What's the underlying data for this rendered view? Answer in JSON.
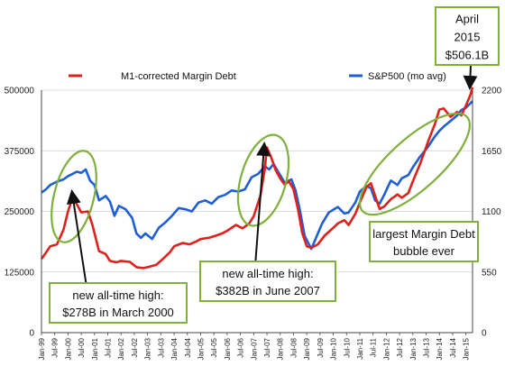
{
  "chart_data": {
    "type": "line",
    "legend": {
      "margin_debt": "M1-corrected Margin Debt",
      "sp500": "S&P500 (mo avg)"
    },
    "colors": {
      "margin_debt": "#e0201b",
      "sp500": "#1f5fd6",
      "oval": "#7fb03c"
    },
    "y_left": {
      "ticks": [
        "0",
        "125000",
        "250000",
        "375000",
        "500000"
      ],
      "range": [
        0,
        500000
      ]
    },
    "y_right": {
      "ticks": [
        "0",
        "550",
        "1100",
        "1650",
        "2200"
      ],
      "range": [
        0,
        2200
      ]
    },
    "x_ticks": [
      "Jan-99",
      "Jul-99",
      "Jan-00",
      "Jul-00",
      "Jan-01",
      "Jul-01",
      "Jan-02",
      "Jul-02",
      "Jan-03",
      "Jul-03",
      "Jan-04",
      "Jul-04",
      "Jan-05",
      "Jul-05",
      "Jan-06",
      "Jul-06",
      "Jan-07",
      "Jul-07",
      "Jan-08",
      "Jul-08",
      "Jan-09",
      "Jul-09",
      "Jan-10",
      "Jul-10",
      "Jan-11",
      "Jul-11",
      "Jan-12",
      "Jul-12",
      "Jan-13",
      "Jul-13",
      "Jan-14",
      "Jul-14",
      "Jan-15"
    ],
    "x_range_years": [
      1999.0,
      2015.25
    ],
    "series": [
      {
        "name": "M1-corrected Margin Debt",
        "axis": "left",
        "points": [
          [
            1999.0,
            152000
          ],
          [
            1999.17,
            165000
          ],
          [
            1999.33,
            178000
          ],
          [
            1999.58,
            182000
          ],
          [
            1999.83,
            212000
          ],
          [
            2000.0,
            250000
          ],
          [
            2000.17,
            278000
          ],
          [
            2000.33,
            265000
          ],
          [
            2000.5,
            248000
          ],
          [
            2000.75,
            250000
          ],
          [
            2000.92,
            222000
          ],
          [
            2001.17,
            168000
          ],
          [
            2001.42,
            162000
          ],
          [
            2001.58,
            148000
          ],
          [
            2001.83,
            145000
          ],
          [
            2002.0,
            148000
          ],
          [
            2002.33,
            146000
          ],
          [
            2002.58,
            135000
          ],
          [
            2002.83,
            133000
          ],
          [
            2003.0,
            135000
          ],
          [
            2003.33,
            140000
          ],
          [
            2003.58,
            152000
          ],
          [
            2003.83,
            165000
          ],
          [
            2004.0,
            178000
          ],
          [
            2004.33,
            185000
          ],
          [
            2004.58,
            182000
          ],
          [
            2004.83,
            188000
          ],
          [
            2005.0,
            193000
          ],
          [
            2005.33,
            196000
          ],
          [
            2005.58,
            200000
          ],
          [
            2005.83,
            205000
          ],
          [
            2006.0,
            210000
          ],
          [
            2006.33,
            222000
          ],
          [
            2006.58,
            215000
          ],
          [
            2006.83,
            225000
          ],
          [
            2007.0,
            240000
          ],
          [
            2007.25,
            282000
          ],
          [
            2007.42,
            338000
          ],
          [
            2007.5,
            382000
          ],
          [
            2007.67,
            360000
          ],
          [
            2007.83,
            335000
          ],
          [
            2008.0,
            318000
          ],
          [
            2008.17,
            305000
          ],
          [
            2008.33,
            312000
          ],
          [
            2008.5,
            296000
          ],
          [
            2008.67,
            255000
          ],
          [
            2008.83,
            205000
          ],
          [
            2009.0,
            178000
          ],
          [
            2009.17,
            175000
          ],
          [
            2009.42,
            182000
          ],
          [
            2009.67,
            200000
          ],
          [
            2009.92,
            212000
          ],
          [
            2010.17,
            225000
          ],
          [
            2010.42,
            232000
          ],
          [
            2010.58,
            222000
          ],
          [
            2010.83,
            245000
          ],
          [
            2011.0,
            268000
          ],
          [
            2011.25,
            300000
          ],
          [
            2011.42,
            308000
          ],
          [
            2011.58,
            282000
          ],
          [
            2011.75,
            255000
          ],
          [
            2011.92,
            260000
          ],
          [
            2012.17,
            275000
          ],
          [
            2012.42,
            285000
          ],
          [
            2012.58,
            278000
          ],
          [
            2012.83,
            288000
          ],
          [
            2013.0,
            312000
          ],
          [
            2013.25,
            345000
          ],
          [
            2013.42,
            370000
          ],
          [
            2013.58,
            395000
          ],
          [
            2013.83,
            430000
          ],
          [
            2014.0,
            460000
          ],
          [
            2014.17,
            462000
          ],
          [
            2014.42,
            445000
          ],
          [
            2014.67,
            455000
          ],
          [
            2014.83,
            448000
          ],
          [
            2015.0,
            468000
          ],
          [
            2015.17,
            490000
          ],
          [
            2015.25,
            506100
          ]
        ]
      },
      {
        "name": "S&P500 (mo avg)",
        "axis": "right",
        "points": [
          [
            1999.0,
            1270
          ],
          [
            1999.17,
            1300
          ],
          [
            1999.33,
            1340
          ],
          [
            1999.58,
            1370
          ],
          [
            1999.83,
            1390
          ],
          [
            2000.0,
            1420
          ],
          [
            2000.17,
            1440
          ],
          [
            2000.33,
            1460
          ],
          [
            2000.5,
            1450
          ],
          [
            2000.67,
            1480
          ],
          [
            2000.83,
            1380
          ],
          [
            2001.0,
            1340
          ],
          [
            2001.17,
            1200
          ],
          [
            2001.42,
            1240
          ],
          [
            2001.58,
            1190
          ],
          [
            2001.75,
            1060
          ],
          [
            2001.92,
            1150
          ],
          [
            2002.17,
            1120
          ],
          [
            2002.42,
            1040
          ],
          [
            2002.58,
            900
          ],
          [
            2002.75,
            860
          ],
          [
            2002.92,
            900
          ],
          [
            2003.17,
            850
          ],
          [
            2003.42,
            950
          ],
          [
            2003.67,
            1000
          ],
          [
            2003.92,
            1060
          ],
          [
            2004.17,
            1130
          ],
          [
            2004.42,
            1120
          ],
          [
            2004.67,
            1100
          ],
          [
            2004.92,
            1180
          ],
          [
            2005.17,
            1200
          ],
          [
            2005.42,
            1170
          ],
          [
            2005.67,
            1230
          ],
          [
            2005.92,
            1250
          ],
          [
            2006.17,
            1290
          ],
          [
            2006.42,
            1280
          ],
          [
            2006.67,
            1300
          ],
          [
            2006.92,
            1410
          ],
          [
            2007.17,
            1440
          ],
          [
            2007.42,
            1510
          ],
          [
            2007.58,
            1480
          ],
          [
            2007.75,
            1530
          ],
          [
            2007.92,
            1460
          ],
          [
            2008.17,
            1360
          ],
          [
            2008.42,
            1390
          ],
          [
            2008.58,
            1290
          ],
          [
            2008.75,
            1100
          ],
          [
            2008.92,
            880
          ],
          [
            2009.17,
            760
          ],
          [
            2009.33,
            850
          ],
          [
            2009.58,
            990
          ],
          [
            2009.83,
            1090
          ],
          [
            2010.17,
            1140
          ],
          [
            2010.42,
            1080
          ],
          [
            2010.58,
            1090
          ],
          [
            2010.83,
            1180
          ],
          [
            2011.0,
            1280
          ],
          [
            2011.25,
            1330
          ],
          [
            2011.42,
            1310
          ],
          [
            2011.58,
            1200
          ],
          [
            2011.75,
            1170
          ],
          [
            2011.92,
            1250
          ],
          [
            2012.17,
            1380
          ],
          [
            2012.42,
            1340
          ],
          [
            2012.58,
            1400
          ],
          [
            2012.83,
            1430
          ],
          [
            2013.0,
            1500
          ],
          [
            2013.25,
            1590
          ],
          [
            2013.42,
            1640
          ],
          [
            2013.58,
            1690
          ],
          [
            2013.83,
            1780
          ],
          [
            2014.0,
            1830
          ],
          [
            2014.17,
            1870
          ],
          [
            2014.42,
            1920
          ],
          [
            2014.67,
            1970
          ],
          [
            2014.83,
            2020
          ],
          [
            2015.0,
            2040
          ],
          [
            2015.17,
            2080
          ],
          [
            2015.25,
            2100
          ]
        ]
      }
    ],
    "annotations": [
      {
        "id": "march2000",
        "lines": [
          "new all-time high:",
          "$278B in March 2000"
        ]
      },
      {
        "id": "june2007",
        "lines": [
          "new all-time high:",
          "$382B in June 2007"
        ]
      },
      {
        "id": "bubble",
        "lines": [
          "largest Margin Debt",
          "bubble ever"
        ]
      },
      {
        "id": "april2015",
        "lines": [
          "April",
          "2015",
          "$506.1B"
        ]
      }
    ]
  }
}
